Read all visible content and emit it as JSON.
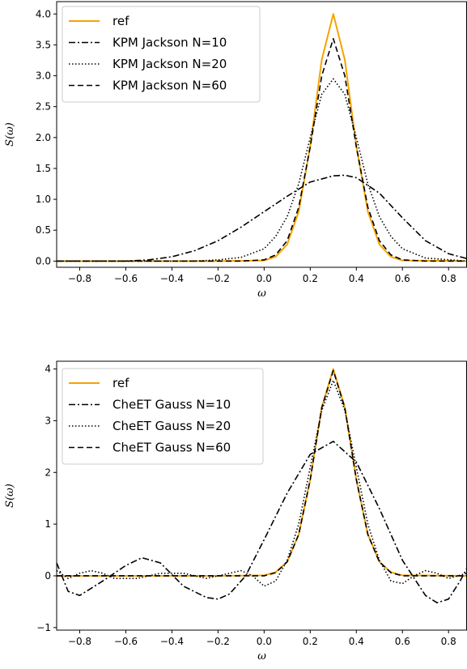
{
  "chart_data": [
    {
      "type": "line",
      "xlabel": "ω",
      "ylabel": "S(ω)",
      "xlim": [
        -0.9,
        0.88
      ],
      "ylim": [
        -0.1,
        4.2
      ],
      "xticks": [
        -0.8,
        -0.6,
        -0.4,
        -0.2,
        0.0,
        0.2,
        0.4,
        0.6,
        0.8
      ],
      "xtick_labels": [
        "−0.8",
        "−0.6",
        "−0.4",
        "−0.2",
        "0.0",
        "0.2",
        "0.4",
        "0.6",
        "0.8"
      ],
      "yticks": [
        0.0,
        0.5,
        1.0,
        1.5,
        2.0,
        2.5,
        3.0,
        3.5,
        4.0
      ],
      "ytick_labels": [
        "0.0",
        "0.5",
        "1.0",
        "1.5",
        "2.0",
        "2.5",
        "3.0",
        "3.5",
        "4.0"
      ],
      "legend_position": "top-left",
      "grid": false,
      "series": [
        {
          "name": "ref",
          "style": "solid",
          "color": "#f5a300",
          "x": [
            -0.9,
            -0.2,
            0.0,
            0.05,
            0.1,
            0.15,
            0.2,
            0.25,
            0.3,
            0.35,
            0.4,
            0.45,
            0.5,
            0.55,
            0.6,
            0.88
          ],
          "y": [
            0,
            0,
            0.01,
            0.07,
            0.27,
            0.8,
            1.86,
            3.26,
            4.0,
            3.26,
            1.86,
            0.8,
            0.27,
            0.07,
            0.01,
            0
          ]
        },
        {
          "name": "KPM Jackson N=10",
          "style": "dashdot",
          "color": "#000000",
          "x": [
            -0.9,
            -0.6,
            -0.5,
            -0.4,
            -0.3,
            -0.2,
            -0.1,
            0.0,
            0.1,
            0.2,
            0.3,
            0.35,
            0.4,
            0.5,
            0.6,
            0.7,
            0.8,
            0.88
          ],
          "y": [
            0,
            0.0,
            0.02,
            0.07,
            0.17,
            0.33,
            0.55,
            0.8,
            1.05,
            1.28,
            1.38,
            1.39,
            1.35,
            1.1,
            0.7,
            0.33,
            0.12,
            0.04
          ]
        },
        {
          "name": "KPM Jackson N=20",
          "style": "dotted",
          "color": "#000000",
          "x": [
            -0.9,
            -0.3,
            -0.2,
            -0.1,
            0.0,
            0.05,
            0.1,
            0.15,
            0.2,
            0.25,
            0.3,
            0.35,
            0.4,
            0.45,
            0.5,
            0.55,
            0.6,
            0.7,
            0.88
          ],
          "y": [
            0,
            0,
            0.02,
            0.06,
            0.2,
            0.4,
            0.72,
            1.25,
            2.0,
            2.7,
            2.95,
            2.7,
            2.0,
            1.25,
            0.72,
            0.4,
            0.2,
            0.05,
            0
          ]
        },
        {
          "name": "KPM Jackson N=60",
          "style": "dashed",
          "color": "#000000",
          "x": [
            -0.9,
            -0.1,
            0.0,
            0.05,
            0.1,
            0.15,
            0.2,
            0.25,
            0.3,
            0.35,
            0.4,
            0.45,
            0.5,
            0.55,
            0.6,
            0.7,
            0.88
          ],
          "y": [
            0,
            0,
            0.02,
            0.1,
            0.33,
            0.87,
            1.85,
            3.0,
            3.6,
            3.0,
            1.85,
            0.87,
            0.33,
            0.1,
            0.02,
            0,
            0
          ]
        }
      ]
    },
    {
      "type": "line",
      "xlabel": "ω",
      "ylabel": "S(ω)",
      "xlim": [
        -0.9,
        0.88
      ],
      "ylim": [
        -1.05,
        4.15
      ],
      "xticks": [
        -0.8,
        -0.6,
        -0.4,
        -0.2,
        0.0,
        0.2,
        0.4,
        0.6,
        0.8
      ],
      "xtick_labels": [
        "−0.8",
        "−0.6",
        "−0.4",
        "−0.2",
        "0.0",
        "0.2",
        "0.4",
        "0.6",
        "0.8"
      ],
      "yticks": [
        -1,
        0,
        1,
        2,
        3,
        4
      ],
      "ytick_labels": [
        "−1",
        "0",
        "1",
        "2",
        "3",
        "4"
      ],
      "legend_position": "top-left",
      "grid": false,
      "series": [
        {
          "name": "ref",
          "style": "solid",
          "color": "#f5a300",
          "x": [
            -0.9,
            -0.2,
            0.0,
            0.05,
            0.1,
            0.15,
            0.2,
            0.25,
            0.3,
            0.35,
            0.4,
            0.45,
            0.5,
            0.55,
            0.6,
            0.88
          ],
          "y": [
            0,
            0,
            0.01,
            0.07,
            0.27,
            0.8,
            1.86,
            3.26,
            4.0,
            3.26,
            1.86,
            0.8,
            0.27,
            0.07,
            0.01,
            0
          ]
        },
        {
          "name": "CheET Gauss N=10",
          "style": "dashdot",
          "color": "#000000",
          "x": [
            -0.9,
            -0.85,
            -0.8,
            -0.7,
            -0.6,
            -0.53,
            -0.45,
            -0.35,
            -0.25,
            -0.2,
            -0.15,
            -0.08,
            0.0,
            0.1,
            0.2,
            0.3,
            0.4,
            0.5,
            0.6,
            0.7,
            0.75,
            0.8,
            0.85,
            0.88
          ],
          "y": [
            0.25,
            -0.3,
            -0.38,
            -0.1,
            0.2,
            0.35,
            0.25,
            -0.2,
            -0.42,
            -0.45,
            -0.35,
            0.0,
            0.7,
            1.6,
            2.35,
            2.6,
            2.2,
            1.3,
            0.3,
            -0.38,
            -0.52,
            -0.45,
            -0.1,
            0.15
          ]
        },
        {
          "name": "CheET Gauss N=20",
          "style": "dotted",
          "color": "#000000",
          "x": [
            -0.9,
            -0.85,
            -0.8,
            -0.75,
            -0.7,
            -0.65,
            -0.55,
            -0.45,
            -0.35,
            -0.25,
            -0.15,
            -0.1,
            -0.05,
            0.0,
            0.05,
            0.1,
            0.15,
            0.2,
            0.25,
            0.3,
            0.35,
            0.4,
            0.45,
            0.5,
            0.55,
            0.6,
            0.65,
            0.7,
            0.75,
            0.8,
            0.88
          ],
          "y": [
            0.1,
            -0.05,
            0.05,
            0.1,
            0.05,
            -0.05,
            -0.05,
            0.05,
            0.05,
            -0.05,
            0.05,
            0.1,
            0.0,
            -0.2,
            -0.1,
            0.3,
            1.0,
            2.1,
            3.2,
            3.78,
            3.2,
            2.1,
            1.0,
            0.3,
            -0.1,
            -0.15,
            0.0,
            0.1,
            0.05,
            -0.05,
            0.05
          ]
        },
        {
          "name": "CheET Gauss N=60",
          "style": "dashed",
          "color": "#000000",
          "x": [
            -0.9,
            -0.1,
            0.0,
            0.05,
            0.1,
            0.15,
            0.2,
            0.25,
            0.3,
            0.35,
            0.4,
            0.45,
            0.5,
            0.55,
            0.6,
            0.88
          ],
          "y": [
            0,
            0,
            0.0,
            0.06,
            0.27,
            0.8,
            1.86,
            3.25,
            3.97,
            3.25,
            1.86,
            0.8,
            0.27,
            0.06,
            0.0,
            0
          ]
        }
      ]
    }
  ]
}
